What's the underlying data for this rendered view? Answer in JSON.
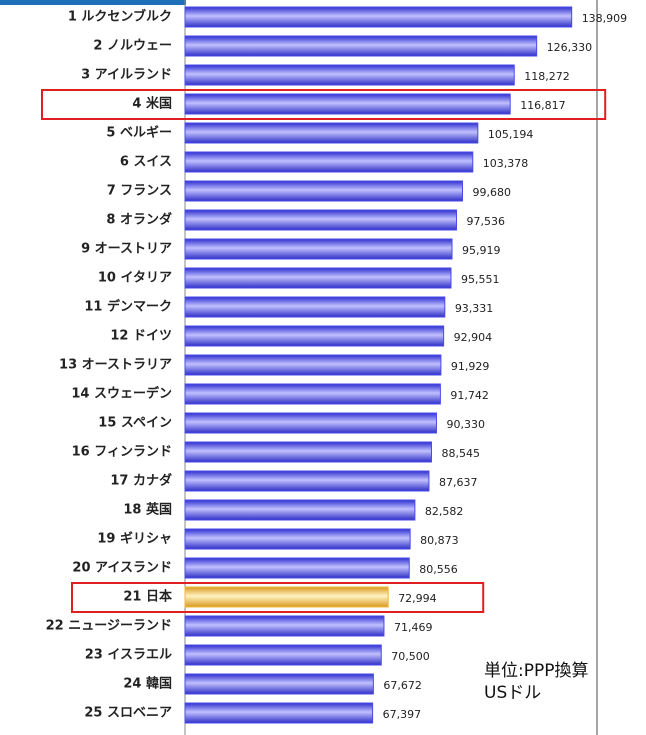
{
  "chart_data": {
    "type": "barh",
    "categories": [
      "1 ルクセンブルク",
      "2 ノルウェー",
      "3 アイルランド",
      "4 米国",
      "5 ベルギー",
      "6 スイス",
      "7 フランス",
      "8 オランダ",
      "9 オーストリア",
      "10 イタリア",
      "11 デンマーク",
      "12 ドイツ",
      "13 オーストラリア",
      "14 スウェーデン",
      "15 スペイン",
      "16 フィンランド",
      "17 カナダ",
      "18 英国",
      "19 ギリシャ",
      "20 アイスランド",
      "21 日本",
      "22 ニュージーランド",
      "23 イスラエル",
      "24 韓国",
      "25 スロベニア"
    ],
    "values": [
      138909,
      126330,
      118272,
      116817,
      105194,
      103378,
      99680,
      97536,
      95919,
      95551,
      93331,
      92904,
      91929,
      91742,
      90330,
      88545,
      87637,
      82582,
      80873,
      80556,
      72994,
      71469,
      70500,
      67672,
      67397
    ],
    "value_labels": [
      "138,909",
      "126,330",
      "118,272",
      "116,817",
      "105,194",
      "103,378",
      "99,680",
      "97,536",
      "95,919",
      "95,551",
      "93,331",
      "92,904",
      "91,929",
      "91,742",
      "90,330",
      "88,545",
      "87,637",
      "82,582",
      "80,873",
      "80,556",
      "72,994",
      "71,469",
      "70,500",
      "67,672",
      "67,397"
    ],
    "color": "#4a4ae8",
    "highlight_color": "#f0b838",
    "highlighted": [
      20
    ],
    "boxed": [
      3,
      20
    ],
    "box_color": "#e02020",
    "xlim": [
      0,
      148000
    ],
    "annotation": "単位:PPP換算USドル"
  }
}
